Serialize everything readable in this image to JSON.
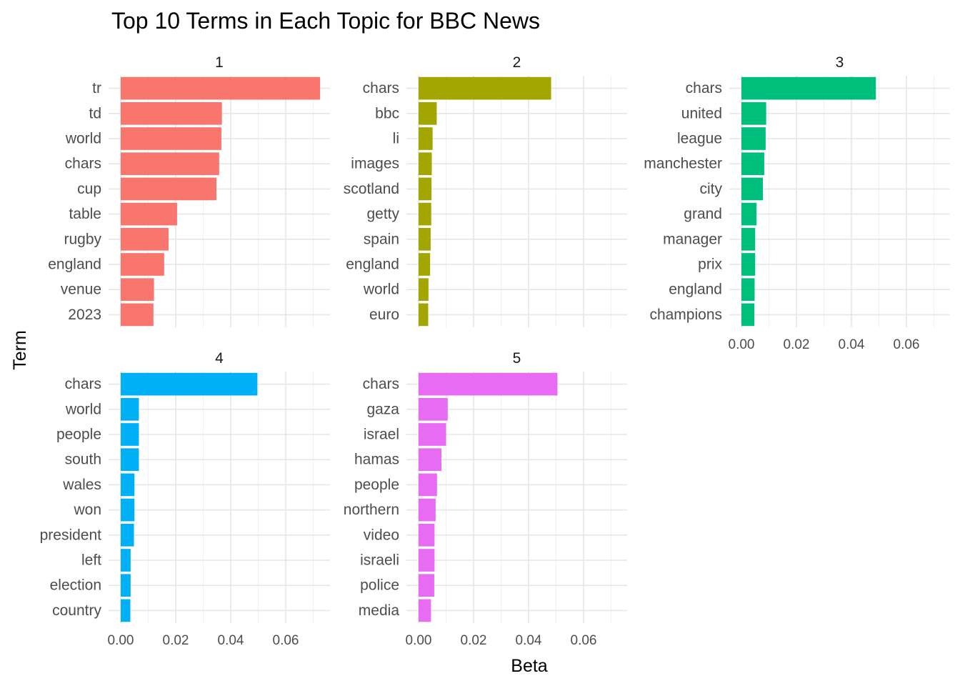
{
  "chart_data": {
    "type": "bar",
    "orientation": "horizontal",
    "title": "Top 10 Terms in Each Topic for BBC News",
    "xlabel": "Beta",
    "ylabel": "Term",
    "xlim": [
      0,
      0.075
    ],
    "x_ticks": [
      "0.00",
      "0.02",
      "0.04",
      "0.06"
    ],
    "grid": true,
    "panels": [
      {
        "topic": "1",
        "color": "#F8766D",
        "terms": [
          "tr",
          "td",
          "world",
          "chars",
          "cup",
          "table",
          "rugby",
          "england",
          "venue",
          "2023"
        ],
        "values": [
          0.0725,
          0.0368,
          0.0366,
          0.0358,
          0.0348,
          0.0205,
          0.0174,
          0.0158,
          0.0121,
          0.0119
        ]
      },
      {
        "topic": "2",
        "color": "#A3A500",
        "terms": [
          "chars",
          "bbc",
          "li",
          "images",
          "scotland",
          "getty",
          "spain",
          "england",
          "world",
          "euro"
        ],
        "values": [
          0.0482,
          0.0066,
          0.0051,
          0.0048,
          0.0047,
          0.0046,
          0.0044,
          0.0042,
          0.0036,
          0.0035
        ]
      },
      {
        "topic": "3",
        "color": "#00BF7D",
        "terms": [
          "chars",
          "united",
          "league",
          "manchester",
          "city",
          "grand",
          "manager",
          "prix",
          "england",
          "champions"
        ],
        "values": [
          0.0489,
          0.009,
          0.0088,
          0.0083,
          0.0078,
          0.0055,
          0.005,
          0.005,
          0.0048,
          0.0047
        ]
      },
      {
        "topic": "4",
        "color": "#00B0F6",
        "terms": [
          "chars",
          "world",
          "people",
          "south",
          "wales",
          "won",
          "president",
          "left",
          "election",
          "country"
        ],
        "values": [
          0.0497,
          0.0066,
          0.0066,
          0.0066,
          0.005,
          0.005,
          0.0048,
          0.0036,
          0.0036,
          0.0035
        ]
      },
      {
        "topic": "5",
        "color": "#E76BF3",
        "terms": [
          "chars",
          "gaza",
          "israel",
          "hamas",
          "people",
          "northern",
          "video",
          "israeli",
          "police",
          "media"
        ],
        "values": [
          0.0505,
          0.0106,
          0.01,
          0.0083,
          0.0067,
          0.0062,
          0.0058,
          0.0058,
          0.0057,
          0.0045
        ]
      }
    ]
  }
}
